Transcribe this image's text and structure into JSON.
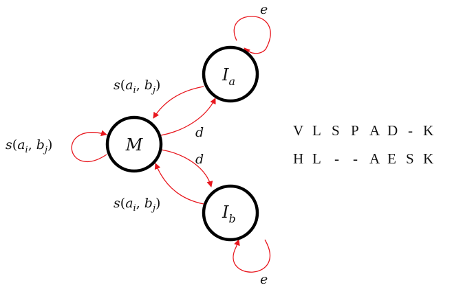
{
  "colors": {
    "edge": "#e8161d",
    "node_stroke": "#000000",
    "text": "#111111"
  },
  "nodes": {
    "M": {
      "base": "M",
      "sub": ""
    },
    "Ia": {
      "base": "I",
      "sub": "a"
    },
    "Ib": {
      "base": "I",
      "sub": "b"
    }
  },
  "edge_labels": {
    "self_M": {
      "fn": "s",
      "arg1": "a",
      "sub1": "i",
      "arg2": "b",
      "sub2": "j"
    },
    "Ia_to_M": {
      "fn": "s",
      "arg1": "a",
      "sub1": "i",
      "arg2": "b",
      "sub2": "j"
    },
    "Ib_to_M": {
      "fn": "s",
      "arg1": "a",
      "sub1": "i",
      "arg2": "b",
      "sub2": "j"
    },
    "M_to_Ia": "d",
    "M_to_Ib": "d",
    "self_Ia": "e",
    "self_Ib": "e"
  },
  "alignment": {
    "row1": [
      "V",
      "L",
      "S",
      "P",
      "A",
      "D",
      "-",
      "K"
    ],
    "row2": [
      "H",
      "L",
      "-",
      "-",
      "A",
      "E",
      "S",
      "K"
    ]
  }
}
